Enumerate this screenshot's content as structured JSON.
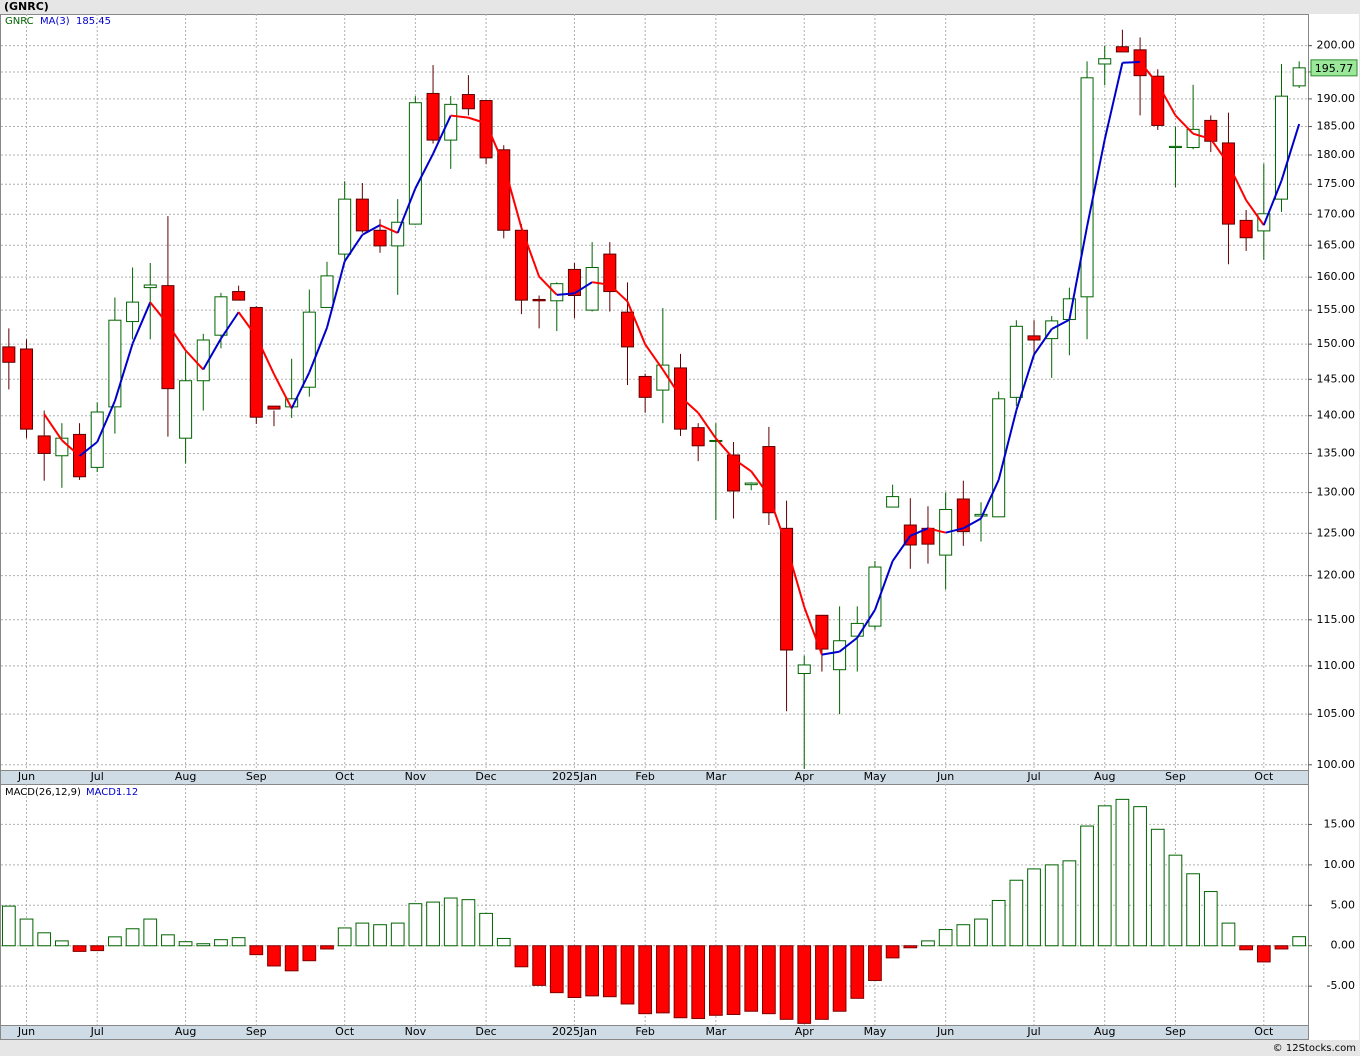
{
  "chart_data": [
    {
      "type": "candlestick",
      "title": "(GNRC)",
      "symbol": "GNRC",
      "log_scale": true,
      "grid": true,
      "up_color": "#006400",
      "down_color": "#ff0000",
      "categories": [
        null,
        "Jun",
        null,
        null,
        null,
        "Jul",
        null,
        null,
        null,
        null,
        "Aug",
        null,
        null,
        null,
        "Sep",
        null,
        null,
        null,
        null,
        "Oct",
        null,
        null,
        null,
        "Nov",
        null,
        null,
        null,
        "Dec",
        null,
        null,
        null,
        null,
        "2025Jan",
        null,
        null,
        null,
        "Feb",
        null,
        null,
        null,
        "Mar",
        null,
        null,
        null,
        null,
        "Apr",
        null,
        null,
        null,
        "May",
        null,
        null,
        null,
        "Jun",
        null,
        null,
        null,
        null,
        "Jul",
        null,
        null,
        null,
        "Aug",
        null,
        null,
        null,
        "Sep",
        null,
        null,
        null,
        null,
        "Oct",
        null,
        null
      ],
      "open": [
        149.6,
        149.3,
        137.3,
        134.7,
        137.5,
        133.2,
        141.2,
        153.3,
        158.4,
        158.7,
        137.0,
        144.8,
        151.3,
        157.8,
        155.4,
        141.3,
        141.2,
        143.9,
        155.4,
        163.6,
        172.5,
        167.4,
        164.9,
        168.4,
        191.0,
        182.6,
        190.8,
        189.7,
        180.9,
        167.4,
        156.6,
        156.4,
        161.2,
        155.0,
        163.6,
        154.7,
        145.4,
        143.5,
        146.6,
        138.4,
        136.6,
        134.8,
        131.0,
        135.9,
        125.6,
        109.2,
        115.5,
        109.6,
        113.2,
        114.3,
        128.2,
        126.0,
        125.6,
        122.4,
        129.2,
        127.1,
        127.0,
        142.5,
        151.2,
        150.8,
        153.6,
        157.0,
        196.5,
        199.8,
        199.2,
        194.2,
        181.3,
        181.3,
        186.1,
        182.1,
        169.0,
        167.3,
        172.5,
        192.4
      ],
      "high": [
        152.3,
        150.7,
        140.7,
        139.0,
        139.0,
        141.8,
        156.9,
        161.5,
        162.2,
        169.7,
        148.9,
        151.5,
        157.6,
        158.7,
        155.6,
        140.7,
        147.9,
        158.1,
        162.4,
        175.5,
        175.2,
        169.2,
        172.5,
        190.5,
        196.3,
        190.5,
        194.4,
        189.7,
        181.7,
        168.4,
        157.2,
        159.2,
        162.2,
        165.5,
        165.5,
        159.2,
        145.8,
        155.3,
        148.6,
        139.0,
        139.0,
        136.5,
        131.3,
        138.5,
        129.0,
        111.1,
        115.5,
        116.5,
        116.5,
        121.7,
        131.0,
        129.3,
        128.3,
        130.0,
        131.5,
        128.8,
        143.3,
        153.5,
        153.5,
        154.1,
        158.4,
        197.0,
        200.0,
        203.1,
        201.6,
        195.5,
        185.0,
        192.6,
        187.0,
        187.5,
        170.7,
        178.5,
        196.5,
        197.0
      ],
      "low": [
        143.6,
        137.0,
        131.5,
        130.6,
        131.6,
        132.6,
        137.6,
        150.7,
        150.7,
        137.2,
        133.7,
        140.7,
        149.4,
        156.6,
        138.9,
        138.6,
        139.7,
        142.6,
        155.6,
        162.7,
        167.0,
        163.8,
        157.3,
        168.3,
        182.0,
        177.6,
        187.0,
        178.4,
        166.1,
        154.4,
        152.3,
        151.9,
        153.8,
        154.8,
        154.8,
        144.2,
        140.4,
        139.0,
        137.3,
        134.0,
        126.6,
        126.8,
        130.3,
        126.0,
        105.3,
        99.6,
        109.4,
        105.0,
        109.4,
        113.9,
        128.5,
        120.8,
        121.4,
        118.4,
        123.5,
        124.0,
        127.0,
        141.3,
        148.1,
        145.2,
        148.4,
        150.7,
        192.5,
        198.8,
        187.0,
        184.4,
        174.5,
        181.0,
        180.5,
        162.0,
        164.1,
        162.7,
        170.4,
        192.0
      ],
      "close": [
        147.4,
        138.2,
        135.0,
        137.0,
        132.0,
        140.5,
        153.5,
        156.2,
        158.8,
        143.7,
        144.8,
        150.6,
        157.0,
        156.5,
        139.8,
        140.9,
        142.3,
        154.7,
        160.2,
        172.5,
        167.3,
        164.9,
        168.7,
        189.3,
        182.6,
        189.0,
        188.2,
        179.5,
        167.4,
        156.5,
        156.4,
        159.0,
        157.2,
        161.5,
        157.8,
        149.6,
        142.5,
        147.0,
        138.2,
        136.0,
        136.7,
        130.2,
        131.2,
        127.5,
        111.7,
        110.1,
        111.8,
        112.7,
        114.6,
        121.0,
        129.5,
        123.6,
        123.7,
        127.9,
        125.2,
        127.3,
        142.3,
        152.6,
        150.6,
        153.4,
        156.7,
        193.9,
        197.5,
        198.8,
        194.3,
        185.2,
        181.5,
        184.5,
        182.4,
        168.4,
        166.2,
        170.08,
        190.5,
        195.77
      ],
      "ma": {
        "name": "MA(3)",
        "up_color": "#0000cc",
        "down_color": "#ff0000",
        "values": [
          null,
          null,
          140.2,
          136.73,
          134.67,
          136.5,
          142,
          150.07,
          156.17,
          152.9,
          149.1,
          146.37,
          150.8,
          154.7,
          151.1,
          145.73,
          141,
          145.97,
          152.4,
          162.47,
          166.67,
          168.23,
          166.97,
          174.3,
          180.2,
          186.97,
          186.6,
          185.57,
          178.37,
          167.8,
          160.1,
          157.3,
          157.53,
          159.23,
          158.83,
          156.3,
          149.97,
          146.37,
          142.57,
          140.4,
          136.97,
          134.3,
          132.7,
          129.63,
          123.47,
          116.43,
          111.2,
          111.53,
          113.03,
          116.1,
          121.7,
          124.7,
          125.6,
          125.07,
          125.6,
          126.8,
          131.6,
          140.73,
          148.5,
          152.2,
          153.57,
          168,
          182.7,
          196.73,
          196.87,
          192.77,
          187,
          183.73,
          182.8,
          178.43,
          172.33,
          168.23,
          175.59,
          185.45
        ]
      },
      "ylim": [
        99.5,
        206.2
      ],
      "yticks": [
        {
          "value": 100,
          "label": "100.00"
        },
        {
          "value": 105,
          "label": "105.00"
        },
        {
          "value": 110,
          "label": "110.00"
        },
        {
          "value": 115,
          "label": "115.00"
        },
        {
          "value": 120,
          "label": "120.00"
        },
        {
          "value": 125,
          "label": "125.00"
        },
        {
          "value": 130,
          "label": "130.00"
        },
        {
          "value": 135,
          "label": "135.00"
        },
        {
          "value": 140,
          "label": "140.00"
        },
        {
          "value": 145,
          "label": "145.00"
        },
        {
          "value": 150,
          "label": "150.00"
        },
        {
          "value": 155,
          "label": "155.00"
        },
        {
          "value": 160,
          "label": "160.00"
        },
        {
          "value": 165,
          "label": "165.00"
        },
        {
          "value": 170,
          "label": "170.00"
        },
        {
          "value": 175,
          "label": "175.00"
        },
        {
          "value": 180,
          "label": "180.00"
        },
        {
          "value": 185,
          "label": "185.00"
        },
        {
          "value": 190,
          "label": "190.00"
        },
        {
          "value": 195,
          "label": "195.00"
        },
        {
          "value": 200,
          "label": "200.00"
        }
      ]
    },
    {
      "type": "bar",
      "title": "MACD(26,12,9)",
      "grid": true,
      "pos_color": "#006400",
      "neg_color": "#ff0000",
      "categories": [
        null,
        "Jun",
        null,
        null,
        null,
        "Jul",
        null,
        null,
        null,
        null,
        "Aug",
        null,
        null,
        null,
        "Sep",
        null,
        null,
        null,
        null,
        "Oct",
        null,
        null,
        null,
        "Nov",
        null,
        null,
        null,
        "Dec",
        null,
        null,
        null,
        null,
        "2025Jan",
        null,
        null,
        null,
        "Feb",
        null,
        null,
        null,
        "Mar",
        null,
        null,
        null,
        null,
        "Apr",
        null,
        null,
        null,
        "May",
        null,
        null,
        null,
        "Jun",
        null,
        null,
        null,
        null,
        "Jul",
        null,
        null,
        null,
        "Aug",
        null,
        null,
        null,
        "Sep",
        null,
        null,
        null,
        null,
        "Oct",
        null,
        null
      ],
      "series": [
        {
          "name": "MACD:",
          "values": [
            4.9,
            3.3,
            1.6,
            0.6,
            -0.7,
            -0.6,
            1.1,
            2.1,
            3.3,
            1.35,
            0.5,
            0.25,
            0.75,
            1.0,
            -1.1,
            -2.5,
            -3.1,
            -1.85,
            -0.4,
            2.2,
            2.8,
            2.6,
            2.8,
            5.2,
            5.4,
            5.9,
            5.7,
            4.0,
            0.9,
            -2.6,
            -4.9,
            -5.8,
            -6.4,
            -6.2,
            -6.3,
            -7.2,
            -8.4,
            -8.3,
            -8.9,
            -9.0,
            -8.6,
            -8.5,
            -8.1,
            -8.4,
            -9.1,
            -9.6,
            -9.1,
            -8.1,
            -6.5,
            -4.3,
            -1.5,
            -0.25,
            0.6,
            2.0,
            2.6,
            3.3,
            5.6,
            8.1,
            9.5,
            10.0,
            10.5,
            14.8,
            17.3,
            18.1,
            17.2,
            14.4,
            11.2,
            8.9,
            6.7,
            2.8,
            -0.5,
            -2.0,
            -0.4,
            1.12
          ]
        }
      ],
      "ylim": [
        -9.8,
        20
      ],
      "yticks": [
        {
          "value": -5,
          "label": "-5.00"
        },
        {
          "value": 0,
          "label": "0.00"
        },
        {
          "value": 5,
          "label": "5.00"
        },
        {
          "value": 10,
          "label": "10.00"
        },
        {
          "value": 15,
          "label": "15.00"
        }
      ]
    }
  ],
  "footer": "© 12Stocks.com"
}
